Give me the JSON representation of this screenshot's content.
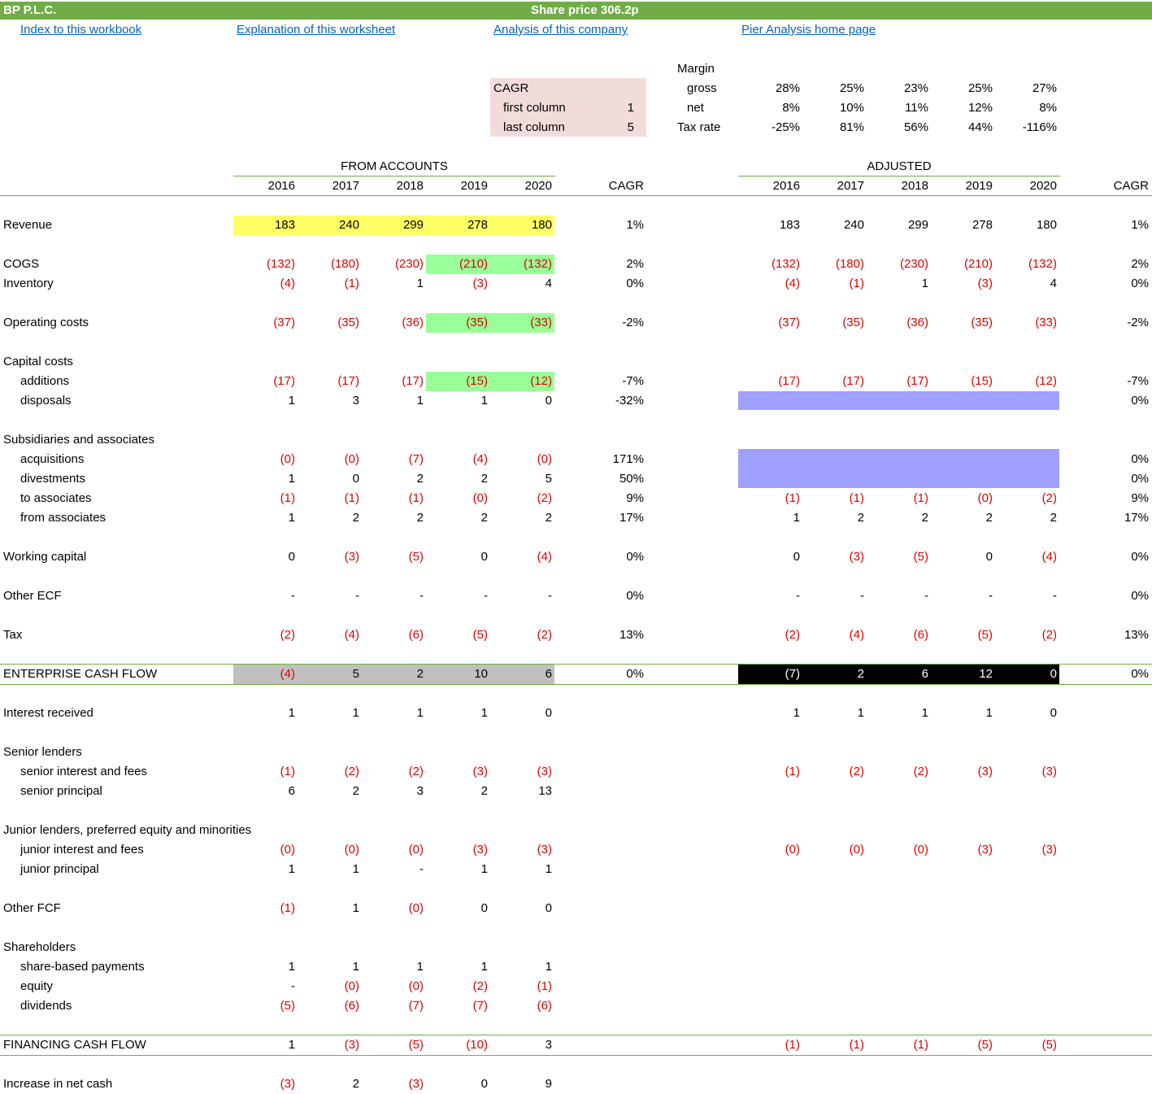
{
  "header": {
    "company": "BP P.L.C.",
    "share_price": "Share price 306.2p"
  },
  "links": [
    "Index to this workbook",
    "Explanation of this worksheet",
    "Analysis of this company",
    "Pier Analysis home page"
  ],
  "cagr_settings": {
    "title": "CAGR",
    "first_label": "first column",
    "first_value": "1",
    "last_label": "last column",
    "last_value": "5"
  },
  "margin": {
    "title": "Margin",
    "rows": [
      {
        "label": "gross",
        "values": [
          "28%",
          "25%",
          "23%",
          "25%",
          "27%"
        ]
      },
      {
        "label": "net",
        "values": [
          "8%",
          "10%",
          "11%",
          "12%",
          "8%"
        ]
      },
      {
        "label": "Tax rate",
        "values": [
          "-25%",
          "81%",
          "56%",
          "44%",
          "-116%"
        ]
      }
    ]
  },
  "column_headers": {
    "from_accounts": "FROM ACCOUNTS",
    "adjusted": "ADJUSTED",
    "years": [
      "2016",
      "2017",
      "2018",
      "2019",
      "2020"
    ],
    "cagr": "CAGR"
  },
  "colors": {
    "title_bar": "#70ad47",
    "yellow_highlight": "#ffff66",
    "green_highlight": "#99ff99",
    "purple_block": "#a0a0ff",
    "grey_total": "#c0c0c0",
    "black_total": "#000000",
    "negative_text": "#e00000",
    "link": "#0563c1"
  },
  "rows": [
    {
      "label": "Revenue",
      "indent": false,
      "acc": [
        "183",
        "240",
        "299",
        "278",
        "180"
      ],
      "cagr": "1%",
      "adj": [
        "183",
        "240",
        "299",
        "278",
        "180"
      ],
      "adj_cagr": "1%"
    },
    {
      "label": "COGS",
      "indent": false,
      "acc": [
        "(132)",
        "(180)",
        "(230)",
        "(210)",
        "(132)"
      ],
      "cagr": "2%",
      "adj": [
        "(132)",
        "(180)",
        "(230)",
        "(210)",
        "(132)"
      ],
      "adj_cagr": "2%"
    },
    {
      "label": "Inventory",
      "indent": false,
      "acc": [
        "(4)",
        "(1)",
        "1",
        "(3)",
        "4"
      ],
      "cagr": "0%",
      "adj": [
        "(4)",
        "(1)",
        "1",
        "(3)",
        "4"
      ],
      "adj_cagr": "0%"
    },
    {
      "label": "Operating costs",
      "indent": false,
      "acc": [
        "(37)",
        "(35)",
        "(36)",
        "(35)",
        "(33)"
      ],
      "cagr": "-2%",
      "adj": [
        "(37)",
        "(35)",
        "(36)",
        "(35)",
        "(33)"
      ],
      "adj_cagr": "-2%"
    },
    {
      "label": "Capital costs",
      "indent": false,
      "acc": [],
      "cagr": "",
      "adj": [],
      "adj_cagr": ""
    },
    {
      "label": "additions",
      "indent": true,
      "acc": [
        "(17)",
        "(17)",
        "(17)",
        "(15)",
        "(12)"
      ],
      "cagr": "-7%",
      "adj": [
        "(17)",
        "(17)",
        "(17)",
        "(15)",
        "(12)"
      ],
      "adj_cagr": "-7%"
    },
    {
      "label": "disposals",
      "indent": true,
      "acc": [
        "1",
        "3",
        "1",
        "1",
        "0"
      ],
      "cagr": "-32%",
      "adj": [],
      "adj_cagr": "0%"
    },
    {
      "label": "Subsidiaries and associates",
      "indent": false,
      "acc": [],
      "cagr": "",
      "adj": [],
      "adj_cagr": ""
    },
    {
      "label": "acquisitions",
      "indent": true,
      "acc": [
        "(0)",
        "(0)",
        "(7)",
        "(4)",
        "(0)"
      ],
      "cagr": "171%",
      "adj": [],
      "adj_cagr": "0%"
    },
    {
      "label": "divestments",
      "indent": true,
      "acc": [
        "1",
        "0",
        "2",
        "2",
        "5"
      ],
      "cagr": "50%",
      "adj": [],
      "adj_cagr": "0%"
    },
    {
      "label": "to associates",
      "indent": true,
      "acc": [
        "(1)",
        "(1)",
        "(1)",
        "(0)",
        "(2)"
      ],
      "cagr": "9%",
      "adj": [
        "(1)",
        "(1)",
        "(1)",
        "(0)",
        "(2)"
      ],
      "adj_cagr": "9%"
    },
    {
      "label": "from associates",
      "indent": true,
      "acc": [
        "1",
        "2",
        "2",
        "2",
        "2"
      ],
      "cagr": "17%",
      "adj": [
        "1",
        "2",
        "2",
        "2",
        "2"
      ],
      "adj_cagr": "17%"
    },
    {
      "label": "Working capital",
      "indent": false,
      "acc": [
        "0",
        "(3)",
        "(5)",
        "0",
        "(4)"
      ],
      "cagr": "0%",
      "adj": [
        "0",
        "(3)",
        "(5)",
        "0",
        "(4)"
      ],
      "adj_cagr": "0%"
    },
    {
      "label": "Other ECF",
      "indent": false,
      "acc": [
        "-",
        "-",
        "-",
        "-",
        "-"
      ],
      "cagr": "0%",
      "adj": [
        "-",
        "-",
        "-",
        "-",
        "-"
      ],
      "adj_cagr": "0%"
    },
    {
      "label": "Tax",
      "indent": false,
      "acc": [
        "(2)",
        "(4)",
        "(6)",
        "(5)",
        "(2)"
      ],
      "cagr": "13%",
      "adj": [
        "(2)",
        "(4)",
        "(6)",
        "(5)",
        "(2)"
      ],
      "adj_cagr": "13%"
    },
    {
      "label": "ENTERPRISE CASH FLOW",
      "indent": false,
      "acc": [
        "(4)",
        "5",
        "2",
        "10",
        "6"
      ],
      "cagr": "0%",
      "adj": [
        "(7)",
        "2",
        "6",
        "12",
        "0"
      ],
      "adj_cagr": "0%"
    },
    {
      "label": "Interest received",
      "indent": false,
      "acc": [
        "1",
        "1",
        "1",
        "1",
        "0"
      ],
      "cagr": "",
      "adj": [
        "1",
        "1",
        "1",
        "1",
        "0"
      ],
      "adj_cagr": ""
    },
    {
      "label": "Senior lenders",
      "indent": false,
      "acc": [],
      "cagr": "",
      "adj": [],
      "adj_cagr": ""
    },
    {
      "label": "senior interest and fees",
      "indent": true,
      "acc": [
        "(1)",
        "(2)",
        "(2)",
        "(3)",
        "(3)"
      ],
      "cagr": "",
      "adj": [
        "(1)",
        "(2)",
        "(2)",
        "(3)",
        "(3)"
      ],
      "adj_cagr": ""
    },
    {
      "label": "senior principal",
      "indent": true,
      "acc": [
        "6",
        "2",
        "3",
        "2",
        "13"
      ],
      "cagr": "",
      "adj": [],
      "adj_cagr": ""
    },
    {
      "label": "Junior lenders, preferred equity and minorities",
      "indent": false,
      "acc": [],
      "cagr": "",
      "adj": [],
      "adj_cagr": ""
    },
    {
      "label": "junior interest and fees",
      "indent": true,
      "acc": [
        "(0)",
        "(0)",
        "(0)",
        "(3)",
        "(3)"
      ],
      "cagr": "",
      "adj": [
        "(0)",
        "(0)",
        "(0)",
        "(3)",
        "(3)"
      ],
      "adj_cagr": ""
    },
    {
      "label": "junior principal",
      "indent": true,
      "acc": [
        "1",
        "1",
        "-",
        "1",
        "1"
      ],
      "cagr": "",
      "adj": [],
      "adj_cagr": ""
    },
    {
      "label": "Other FCF",
      "indent": false,
      "acc": [
        "(1)",
        "1",
        "(0)",
        "0",
        "0"
      ],
      "cagr": "",
      "adj": [],
      "adj_cagr": ""
    },
    {
      "label": "Shareholders",
      "indent": false,
      "acc": [],
      "cagr": "",
      "adj": [],
      "adj_cagr": ""
    },
    {
      "label": "share-based payments",
      "indent": true,
      "acc": [
        "1",
        "1",
        "1",
        "1",
        "1"
      ],
      "cagr": "",
      "adj": [],
      "adj_cagr": ""
    },
    {
      "label": "equity",
      "indent": true,
      "acc": [
        "-",
        "(0)",
        "(0)",
        "(2)",
        "(1)"
      ],
      "cagr": "",
      "adj": [],
      "adj_cagr": ""
    },
    {
      "label": "dividends",
      "indent": true,
      "acc": [
        "(5)",
        "(6)",
        "(7)",
        "(7)",
        "(6)"
      ],
      "cagr": "",
      "adj": [],
      "adj_cagr": ""
    },
    {
      "label": "FINANCING CASH FLOW",
      "indent": false,
      "acc": [
        "1",
        "(3)",
        "(5)",
        "(10)",
        "3"
      ],
      "cagr": "",
      "adj": [
        "(1)",
        "(1)",
        "(1)",
        "(5)",
        "(5)"
      ],
      "adj_cagr": ""
    },
    {
      "label": "Increase in net cash",
      "indent": false,
      "acc": [
        "(3)",
        "2",
        "(3)",
        "0",
        "9"
      ],
      "cagr": "",
      "adj": [],
      "adj_cagr": ""
    }
  ]
}
